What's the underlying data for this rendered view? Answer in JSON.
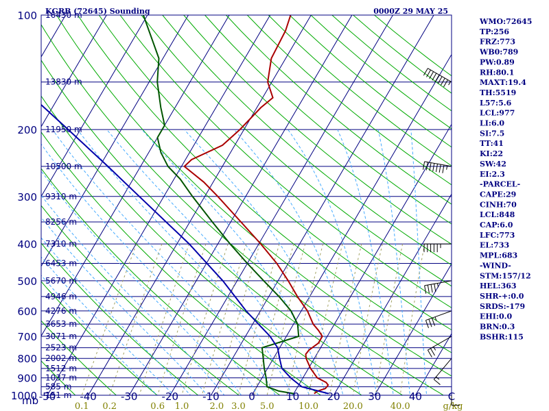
{
  "title_left": "KGRB (72645) Sounding",
  "title_right": "0000Z 29 MAY 25",
  "chart_data": {
    "type": "skew-t",
    "pressure_axis": {
      "label": "mb",
      "ticks": [
        "100",
        "200",
        "300",
        "400",
        "500",
        "600",
        "700",
        "800",
        "900",
        "1000"
      ]
    },
    "temperature_axis": {
      "ticks": [
        "-50",
        "-40",
        "-30",
        "-20",
        "-10",
        "0",
        "10",
        "20",
        "30",
        "40",
        "C"
      ],
      "range": [
        -50,
        50
      ]
    },
    "mixing_ratio_axis": {
      "unit": "g/kg",
      "ticks": [
        "0.1",
        "0.2",
        "0.6",
        "1.0",
        "2.0",
        "3.0",
        "5.0",
        "10.0",
        "20.0",
        "40.0"
      ]
    },
    "height_labels": [
      {
        "p": 100,
        "text": "16430 m"
      },
      {
        "p": 150,
        "text": "13830 m"
      },
      {
        "p": 200,
        "text": "11950 m"
      },
      {
        "p": 250,
        "text": "10500 m"
      },
      {
        "p": 300,
        "text": "9310 m"
      },
      {
        "p": 350,
        "text": "8256 m"
      },
      {
        "p": 400,
        "text": "7310 m"
      },
      {
        "p": 450,
        "text": "6453 m"
      },
      {
        "p": 500,
        "text": "5670 m"
      },
      {
        "p": 550,
        "text": "4946 m"
      },
      {
        "p": 600,
        "text": "4276 m"
      },
      {
        "p": 650,
        "text": "3653 m"
      },
      {
        "p": 700,
        "text": "3071 m"
      },
      {
        "p": 750,
        "text": "2523 m"
      },
      {
        "p": 800,
        "text": "2002 m"
      },
      {
        "p": 850,
        "text": "1512 m"
      },
      {
        "p": 900,
        "text": "1037 m"
      },
      {
        "p": 950,
        "text": "585 m"
      },
      {
        "p": 1000,
        "text": "151 m"
      }
    ],
    "series": [
      {
        "color": "#aa0000",
        "points": [
          [
            990,
            15.0
          ],
          [
            975,
            15.5
          ],
          [
            960,
            17.0
          ],
          [
            940,
            17.2
          ],
          [
            925,
            16.3
          ],
          [
            900,
            13.5
          ],
          [
            850,
            10.5
          ],
          [
            800,
            8.0
          ],
          [
            780,
            7.3
          ],
          [
            760,
            7.5
          ],
          [
            730,
            8.8
          ],
          [
            700,
            8.8
          ],
          [
            675,
            7.0
          ],
          [
            650,
            4.8
          ],
          [
            600,
            1.5
          ],
          [
            550,
            -3.0
          ],
          [
            500,
            -7.5
          ],
          [
            450,
            -12.8
          ],
          [
            400,
            -19.5
          ],
          [
            350,
            -27.5
          ],
          [
            300,
            -36.8
          ],
          [
            275,
            -42.3
          ],
          [
            250,
            -49.3
          ],
          [
            240,
            -48.5
          ],
          [
            220,
            -43.0
          ],
          [
            200,
            -41.0
          ],
          [
            175,
            -39.0
          ],
          [
            165,
            -37.5
          ],
          [
            150,
            -41.0
          ],
          [
            130,
            -43.5
          ],
          [
            110,
            -44.0
          ],
          [
            100,
            -45.0
          ]
        ]
      },
      {
        "color": "#005500",
        "points": [
          [
            990,
            10.0
          ],
          [
            975,
            6.0
          ],
          [
            950,
            2.5
          ],
          [
            900,
            1.0
          ],
          [
            850,
            -0.8
          ],
          [
            800,
            -2.5
          ],
          [
            750,
            -4.3
          ],
          [
            700,
            3.0
          ],
          [
            650,
            1.0
          ],
          [
            600,
            -2.5
          ],
          [
            550,
            -7.5
          ],
          [
            500,
            -13.5
          ],
          [
            450,
            -20.0
          ],
          [
            400,
            -27.0
          ],
          [
            350,
            -34.5
          ],
          [
            300,
            -43.0
          ],
          [
            270,
            -48.5
          ],
          [
            250,
            -53.3
          ],
          [
            230,
            -57.0
          ],
          [
            210,
            -60.0
          ],
          [
            195,
            -60.0
          ],
          [
            175,
            -63.5
          ],
          [
            150,
            -68.0
          ],
          [
            130,
            -71.0
          ],
          [
            100,
            -81.0
          ]
        ]
      },
      {
        "color": "#0000aa",
        "points": [
          [
            990,
            18.5
          ],
          [
            950,
            11.0
          ],
          [
            900,
            7.0
          ],
          [
            850,
            3.5
          ],
          [
            800,
            1.5
          ],
          [
            750,
            -0.5
          ],
          [
            700,
            -4.0
          ],
          [
            600,
            -13.5
          ],
          [
            500,
            -23.5
          ],
          [
            400,
            -37.0
          ],
          [
            300,
            -56.0
          ],
          [
            250,
            -68.0
          ],
          [
            200,
            -83.0
          ],
          [
            170,
            -94.0
          ],
          [
            150,
            -101.0
          ],
          [
            125,
            -111.0
          ],
          [
            110,
            -117.0
          ]
        ]
      }
    ],
    "winds": [
      {
        "p": 150,
        "dir": 300,
        "spd": 110
      },
      {
        "p": 250,
        "dir": 280,
        "spd": 75
      },
      {
        "p": 400,
        "dir": 270,
        "spd": 55
      },
      {
        "p": 500,
        "dir": 260,
        "spd": 45
      },
      {
        "p": 600,
        "dir": 250,
        "spd": 35
      },
      {
        "p": 700,
        "dir": 240,
        "spd": 25
      },
      {
        "p": 800,
        "dir": 220,
        "spd": 15
      },
      {
        "p": 900,
        "dir": 180,
        "spd": 10
      }
    ]
  },
  "indices": [
    "WMO:72645",
    "TP:256",
    "FRZ:773",
    "WB0:789",
    "PW:0.89",
    "RH:80.1",
    "MAXT:19.4",
    "TH:5519",
    "L57:5.6",
    "LCL:977",
    "LI:6.0",
    "SI:7.5",
    "TT:41",
    "KI:22",
    "SW:42",
    "EI:2.3",
    "-PARCEL-",
    "CAPE:29",
    "CINH:70",
    "LCL:848",
    "CAP:6.0",
    "LFC:773",
    "EL:733",
    "MPL:683",
    "-WIND-",
    "STM:157/12",
    "HEL:363",
    "SHR-+:0.0",
    "SRDS:-179",
    "EHI:0.0",
    "BRN:0.3",
    "BSHR:115"
  ],
  "colors": {
    "isobar": "#000080",
    "isotherm": "#000080",
    "dry_adiabat": "#00aa00",
    "moist_adiabat": "#44aaff",
    "mixing_ratio": "#a0a060",
    "wind_barb": "#000000"
  }
}
